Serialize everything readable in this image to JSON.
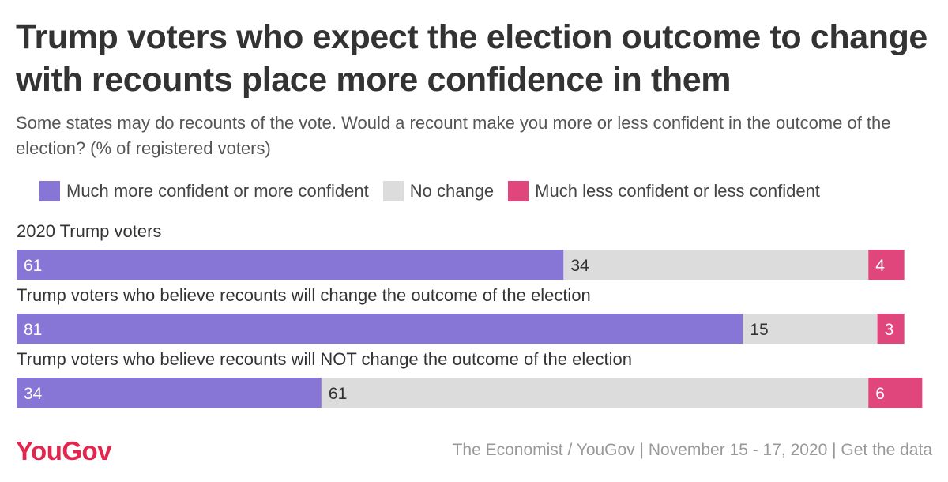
{
  "title": "Trump voters who expect the election outcome to change with recounts place more confidence in them",
  "subtitle": "Some states may do recounts of the vote. Would a recount make you more or less confident in the outcome of the election? (% of registered voters)",
  "legend": [
    {
      "label": "Much more confident or more confident",
      "color": "#8876d6"
    },
    {
      "label": "No change",
      "color": "#dcdcdc"
    },
    {
      "label": "Much less confident or less confident",
      "color": "#e0467c"
    }
  ],
  "chart_data": {
    "type": "bar",
    "orientation": "horizontal-stacked-100",
    "categories": [
      "2020 Trump voters",
      "Trump voters who believe recounts will change the outcome of the election",
      "Trump voters who believe recounts will NOT change the outcome of the election"
    ],
    "series": [
      {
        "name": "Much more confident or more confident",
        "color": "#8876d6",
        "label_color": "#ffffff",
        "values": [
          61,
          81,
          34
        ]
      },
      {
        "name": "No change",
        "color": "#dcdcdc",
        "label_color": "#333333",
        "values": [
          34,
          15,
          61
        ]
      },
      {
        "name": "Much less confident or less confident",
        "color": "#e0467c",
        "label_color": "#ffffff",
        "values": [
          4,
          3,
          6
        ]
      }
    ],
    "xlim": [
      0,
      100
    ]
  },
  "footer": {
    "logo": "YouGov",
    "source": "The Economist / YouGov | November 15 - 17, 2020 | Get the data"
  }
}
